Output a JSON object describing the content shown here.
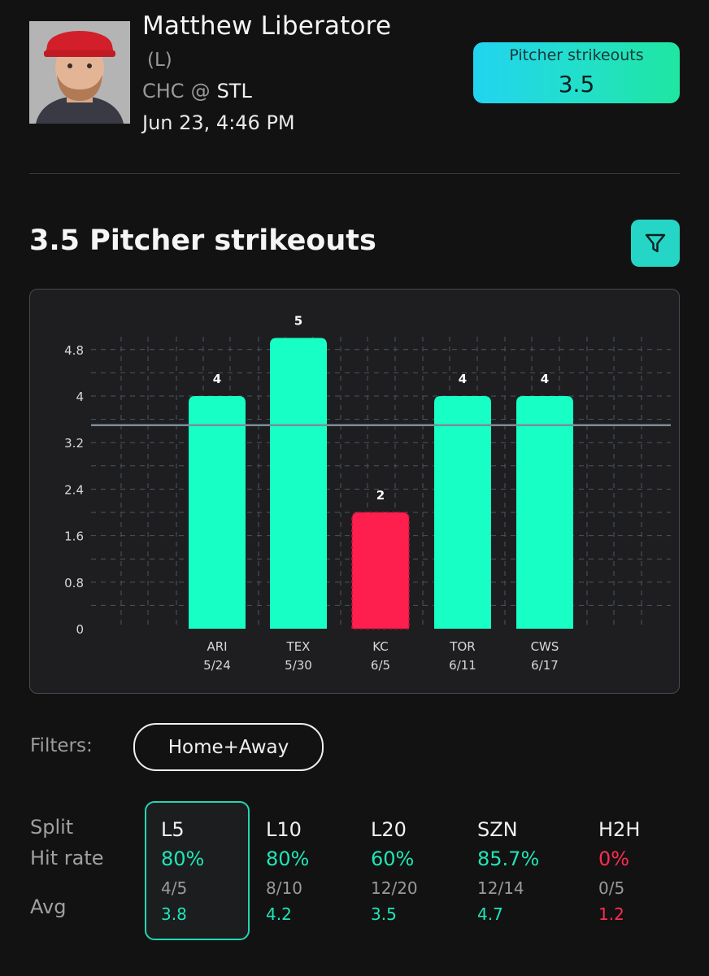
{
  "player": {
    "name": "Matthew Liberatore",
    "hand": "(L)",
    "away_team": "CHC",
    "at_symbol": "@",
    "home_team": "STL",
    "game_time": "Jun 23, 4:46 PM"
  },
  "prop": {
    "label": "Pitcher strikeouts",
    "line": "3.5"
  },
  "section": {
    "title": "3.5 Pitcher strikeouts",
    "filter_icon": "funnel-icon"
  },
  "chart_data": {
    "type": "bar",
    "title": "",
    "xlabel": "",
    "ylabel": "",
    "ylim": [
      0,
      5.6
    ],
    "y_ticks": [
      "0",
      "0.8",
      "1.6",
      "2.4",
      "3.2",
      "4",
      "4.8"
    ],
    "reference_line": 3.5,
    "categories": [
      "ARI",
      "TEX",
      "KC",
      "TOR",
      "CWS"
    ],
    "dates": [
      "5/24",
      "5/30",
      "6/5",
      "6/11",
      "6/17"
    ],
    "values": [
      4,
      5,
      2,
      4,
      4
    ],
    "colors": {
      "over": "#17ffc4",
      "under": "#ff1f4e",
      "line": "#7a8e9a",
      "grid": "#4a5560"
    },
    "grid": true
  },
  "filters": {
    "label": "Filters:",
    "active": "Home+Away"
  },
  "splits": {
    "labels": {
      "split": "Split",
      "hit_rate": "Hit rate",
      "avg": "Avg"
    },
    "selected_index": 0,
    "columns": [
      {
        "period": "L5",
        "rate": "80%",
        "frac": "4/5",
        "avg": "3.8",
        "status": "green"
      },
      {
        "period": "L10",
        "rate": "80%",
        "frac": "8/10",
        "avg": "4.2",
        "status": "green"
      },
      {
        "period": "L20",
        "rate": "60%",
        "frac": "12/20",
        "avg": "3.5",
        "status": "green"
      },
      {
        "period": "SZN",
        "rate": "85.7%",
        "frac": "12/14",
        "avg": "4.7",
        "status": "green"
      },
      {
        "period": "H2H",
        "rate": "0%",
        "frac": "0/5",
        "avg": "1.2",
        "status": "red"
      }
    ]
  }
}
